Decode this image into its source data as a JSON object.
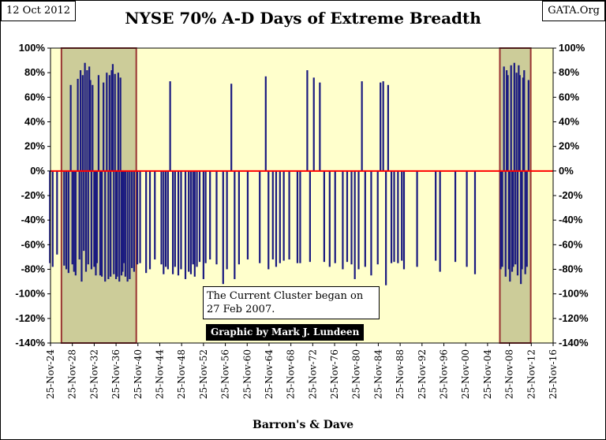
{
  "header": {
    "date": "12 Oct 2012",
    "title": "NYSE 70% A-D Days of Extreme Breadth",
    "source": "GATA.Org"
  },
  "annotations": {
    "note": "The Current Cluster began on 27 Feb 2007.",
    "credit": "Graphic by Mark J. Lundeen"
  },
  "colors": {
    "plot_background": "#ffffcc",
    "cluster_fill": "#cccc99",
    "cluster_border": "#993333",
    "bar": "#1a1a80",
    "zero_line": "#ff0000"
  },
  "chart_data": {
    "type": "bar",
    "title": "NYSE 70% A-D Days of Extreme Breadth",
    "xlabel": "Barron's & Dave",
    "ylabel": "",
    "xlim": [
      "25-Nov-24",
      "25-Nov-16"
    ],
    "ylim": [
      -140,
      100
    ],
    "y_ticks": [
      "100%",
      "80%",
      "60%",
      "40%",
      "20%",
      "0%",
      "-20%",
      "-40%",
      "-60%",
      "-80%",
      "-100%",
      "-120%",
      "-140%"
    ],
    "y_tick_values": [
      100,
      80,
      60,
      40,
      20,
      0,
      -20,
      -40,
      -60,
      -80,
      -100,
      -120,
      -140
    ],
    "x_ticks": [
      "25-Nov-24",
      "25-Nov-28",
      "25-Nov-32",
      "25-Nov-36",
      "25-Nov-40",
      "25-Nov-44",
      "25-Nov-48",
      "25-Nov-52",
      "25-Nov-56",
      "25-Nov-60",
      "25-Nov-64",
      "25-Nov-68",
      "25-Nov-72",
      "25-Nov-76",
      "25-Nov-80",
      "25-Nov-84",
      "25-Nov-88",
      "25-Nov-92",
      "25-Nov-96",
      "25-Nov-00",
      "25-Nov-04",
      "25-Nov-08",
      "25-Nov-12",
      "25-Nov-16"
    ],
    "grid": false,
    "legend": "none",
    "clusters": [
      {
        "start": 1926.9,
        "end": 1940.6
      },
      {
        "start": 2007.15,
        "end": 2012.8
      }
    ],
    "x": [
      1924.8,
      1925.3,
      1926.1,
      1927.4,
      1927.8,
      1928.2,
      1928.6,
      1928.9,
      1929.2,
      1929.5,
      1929.9,
      1930.2,
      1930.4,
      1930.6,
      1930.8,
      1931.0,
      1931.2,
      1931.4,
      1931.6,
      1931.8,
      1932.0,
      1932.2,
      1932.4,
      1932.6,
      1932.9,
      1933.2,
      1933.4,
      1933.7,
      1934.0,
      1934.3,
      1934.6,
      1934.9,
      1935.2,
      1935.5,
      1935.7,
      1935.9,
      1936.1,
      1936.3,
      1936.5,
      1936.7,
      1936.9,
      1937.1,
      1937.3,
      1937.5,
      1937.7,
      1937.9,
      1938.1,
      1938.3,
      1938.6,
      1939.0,
      1939.4,
      1939.8,
      1940.2,
      1940.8,
      1941.3,
      1942.4,
      1943.1,
      1944.0,
      1945.2,
      1945.6,
      1946.0,
      1946.4,
      1946.8,
      1947.3,
      1947.7,
      1948.3,
      1948.8,
      1949.6,
      1950.2,
      1950.6,
      1951.0,
      1951.3,
      1951.7,
      1952.2,
      1952.9,
      1953.3,
      1954.1,
      1955.3,
      1956.5,
      1957.2,
      1958.0,
      1958.6,
      1959.4,
      1961.0,
      1963.2,
      1964.3,
      1964.8,
      1965.6,
      1966.2,
      1966.9,
      1967.6,
      1968.6,
      1970.1,
      1970.6,
      1971.9,
      1972.4,
      1973.1,
      1974.2,
      1975.0,
      1976.0,
      1977.0,
      1978.4,
      1979.2,
      1980.0,
      1980.6,
      1981.3,
      1981.9,
      1982.5,
      1983.6,
      1984.8,
      1985.3,
      1985.8,
      1986.3,
      1986.7,
      1987.3,
      1987.8,
      1988.5,
      1989.2,
      1989.6,
      1992.0,
      1995.4,
      1996.2,
      1999.0,
      2001.1,
      2002.6,
      2007.3,
      2007.6,
      2007.9,
      2008.2,
      2008.4,
      2008.6,
      2008.8,
      2009.0,
      2009.2,
      2009.4,
      2009.6,
      2009.8,
      2010.0,
      2010.2,
      2010.4,
      2010.6,
      2010.8,
      2011.0,
      2011.2,
      2011.4,
      2011.6,
      2011.8,
      2012.1,
      2012.4
    ],
    "values": [
      -75,
      -78,
      -68,
      -77,
      -80,
      -83,
      70,
      -76,
      -82,
      -85,
      75,
      -72,
      82,
      -90,
      78,
      -65,
      88,
      -82,
      82,
      -76,
      85,
      74,
      -80,
      70,
      -78,
      -85,
      -75,
      78,
      -85,
      -86,
      72,
      -90,
      80,
      -88,
      78,
      -86,
      82,
      87,
      -84,
      79,
      -88,
      -86,
      80,
      -90,
      76,
      -85,
      -82,
      -75,
      -86,
      -90,
      -88,
      -79,
      -82,
      -76,
      -75,
      -83,
      -80,
      -72,
      -76,
      -84,
      -78,
      -80,
      73,
      -84,
      -78,
      -85,
      -80,
      -88,
      -82,
      -84,
      -76,
      -86,
      -78,
      -74,
      -88,
      -75,
      -72,
      -76,
      -92,
      -80,
      71,
      -88,
      -76,
      -72,
      -75,
      77,
      -80,
      -72,
      -78,
      -75,
      -73,
      -72,
      -75,
      -75,
      82,
      -74,
      76,
      72,
      -74,
      -78,
      -75,
      -80,
      -74,
      -76,
      -88,
      -80,
      73,
      -78,
      -85,
      -76,
      72,
      73,
      -93,
      70,
      -75,
      -74,
      -75,
      -73,
      -80,
      -78,
      -73,
      -82,
      -74,
      -78,
      -84,
      -80,
      -78,
      85,
      -86,
      82,
      78,
      -80,
      -90,
      86,
      -82,
      -78,
      88,
      -76,
      80,
      -85,
      86,
      78,
      -92,
      -80,
      76,
      82,
      -84,
      -78,
      74
    ]
  }
}
